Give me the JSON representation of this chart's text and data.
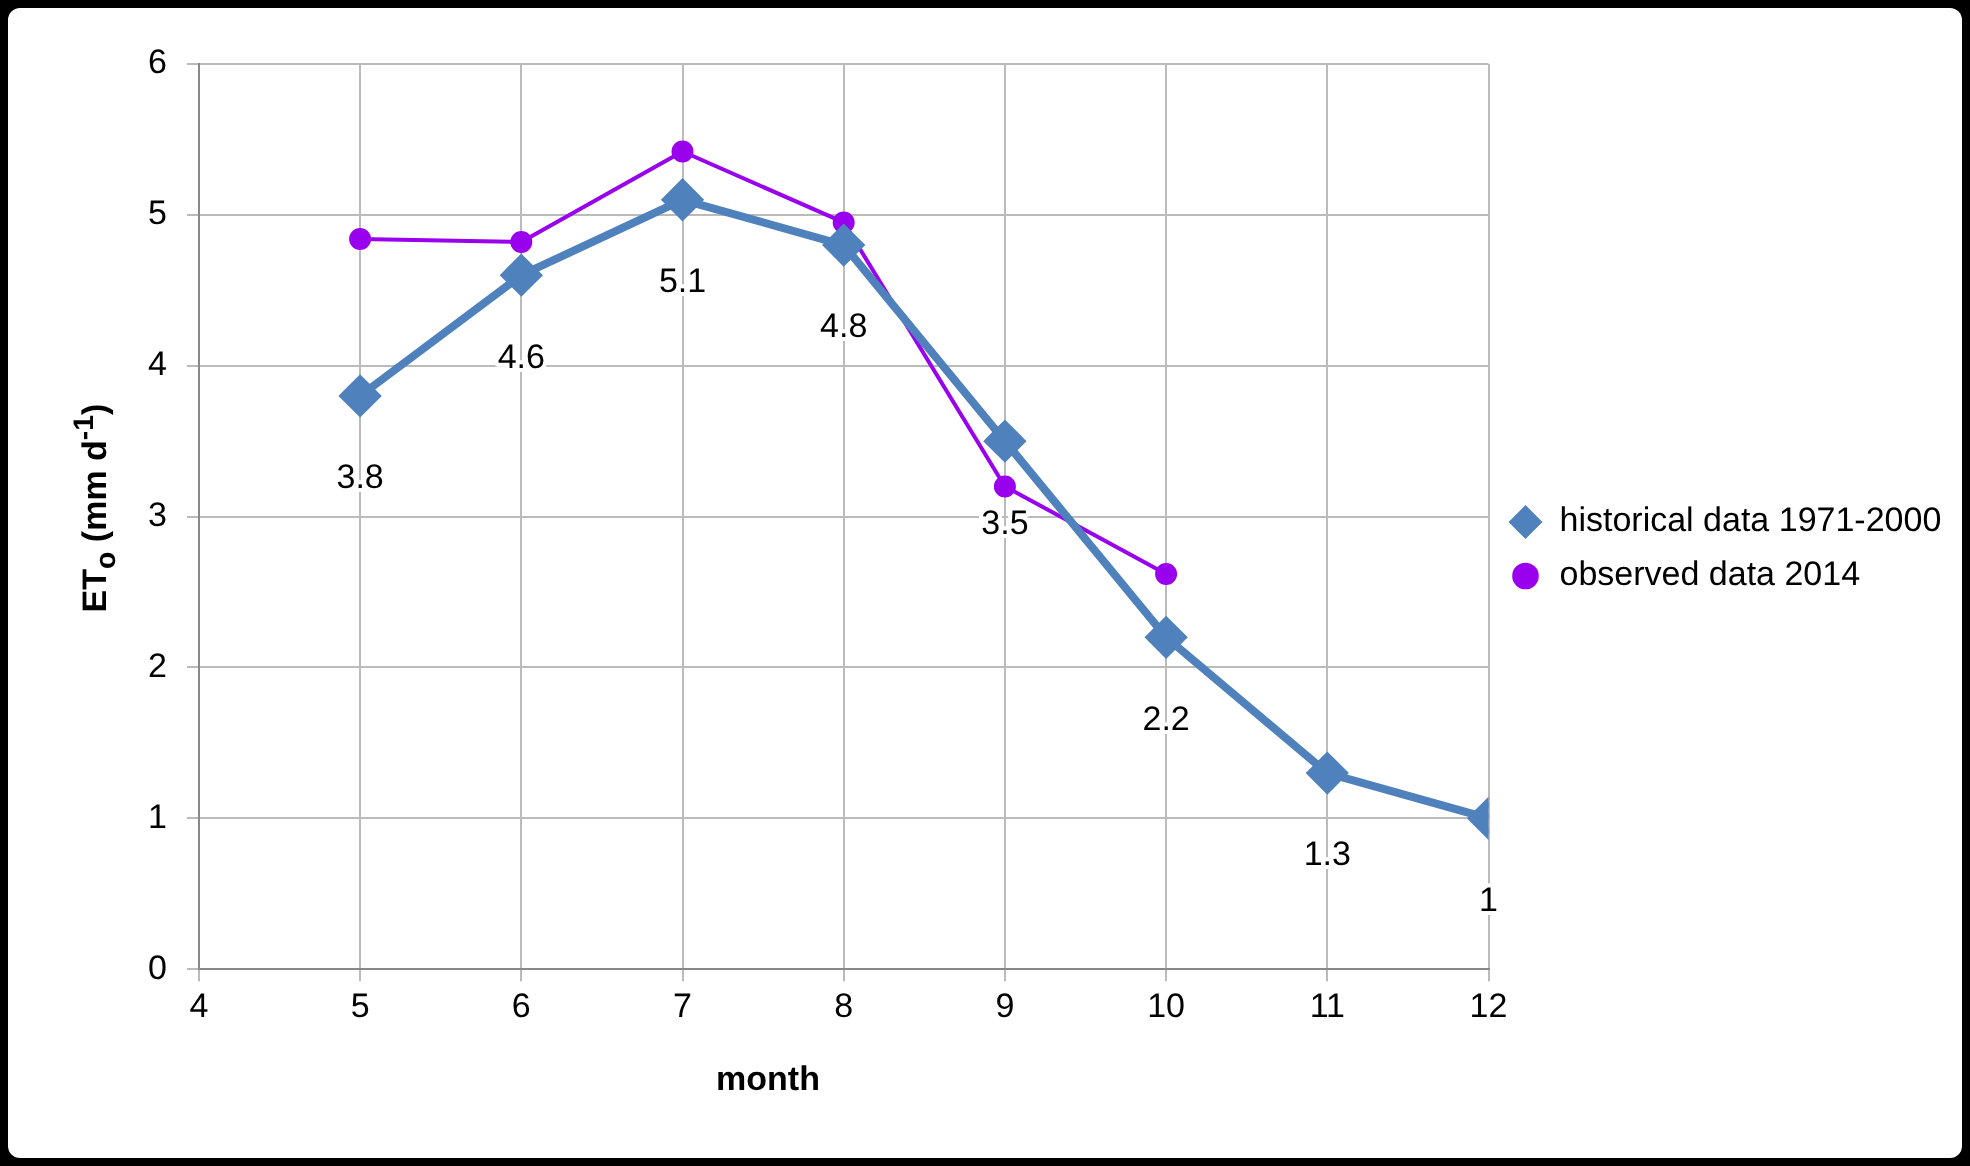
{
  "chart_data": {
    "type": "line",
    "xlabel": "month",
    "ylabel": "ET$_{o}$ (mm d$^{-1}$)",
    "xlim": [
      4,
      12
    ],
    "xticks": [
      4,
      5,
      6,
      7,
      8,
      9,
      10,
      11,
      12
    ],
    "ylim": [
      0,
      6
    ],
    "yticks": [
      0,
      1,
      2,
      3,
      4,
      5,
      6
    ],
    "grid": true,
    "legend": "right",
    "series": [
      {
        "name": "historical data 1971-2000",
        "color": "#4f81bd",
        "marker": "diamond",
        "x": [
          5,
          6,
          7,
          8,
          9,
          10,
          11,
          12
        ],
        "values": [
          3.8,
          4.6,
          5.1,
          4.8,
          3.5,
          2.2,
          1.3,
          1
        ],
        "value_labels": [
          "3.8",
          "4.6",
          "5.1",
          "4.8",
          "3.5",
          "2.2",
          "1.3",
          "1"
        ]
      },
      {
        "name": "observed data 2014",
        "color": "#9900ee",
        "marker": "circle",
        "x": [
          5,
          6,
          7,
          8,
          9,
          10
        ],
        "values": [
          4.84,
          4.82,
          5.42,
          4.95,
          3.2,
          2.62
        ]
      }
    ]
  }
}
